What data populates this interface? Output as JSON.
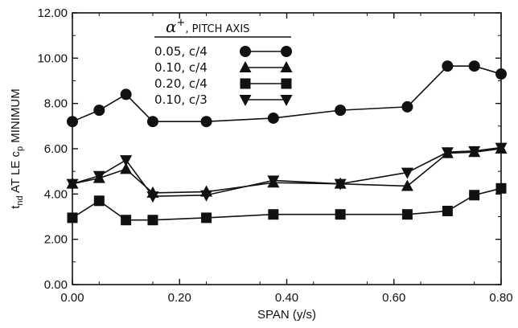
{
  "chart_data": {
    "type": "line",
    "xlabel": "SPAN (y/s)",
    "ylabel": {
      "t": "t",
      "t_sub": "nd",
      "mid": " AT LE c",
      "c_sub": "p",
      "end": " MINIMUM"
    },
    "xlim": [
      0,
      0.8
    ],
    "ylim": [
      0,
      12
    ],
    "x_ticks": [
      0.0,
      0.2,
      0.4,
      0.6,
      0.8
    ],
    "x_tick_labels": [
      "0.00",
      "0.20",
      "0.40",
      "0.60",
      "0.80"
    ],
    "y_ticks": [
      0,
      2,
      4,
      6,
      8,
      10,
      12
    ],
    "y_tick_labels": [
      "0.00",
      "2.00",
      "4.00",
      "6.00",
      "8.00",
      "10.00",
      "12.00"
    ],
    "grid": false,
    "legend": {
      "placement": "top-center",
      "title_symbol": "α",
      "title_sup": "+",
      "title_text": "PITCH AXIS"
    },
    "series": [
      {
        "name": "0.05, c/4",
        "marker": "circle",
        "x": [
          0.0,
          0.05,
          0.1,
          0.15,
          0.25,
          0.375,
          0.5,
          0.625,
          0.7,
          0.75,
          0.8
        ],
        "y": [
          7.2,
          7.7,
          8.4,
          7.2,
          7.2,
          7.35,
          7.7,
          7.85,
          9.65,
          9.65,
          9.3
        ]
      },
      {
        "name": "0.10, c/4",
        "marker": "triangle-up",
        "x": [
          0.0,
          0.05,
          0.1,
          0.15,
          0.25,
          0.375,
          0.5,
          0.625,
          0.7,
          0.75,
          0.8
        ],
        "y": [
          4.45,
          4.7,
          5.1,
          4.05,
          4.1,
          4.5,
          4.45,
          4.35,
          5.8,
          5.85,
          6.0
        ]
      },
      {
        "name": "0.20, c/4",
        "marker": "square",
        "x": [
          0.0,
          0.05,
          0.1,
          0.15,
          0.25,
          0.375,
          0.5,
          0.625,
          0.7,
          0.75,
          0.8
        ],
        "y": [
          2.95,
          3.7,
          2.85,
          2.85,
          2.95,
          3.1,
          3.1,
          3.1,
          3.25,
          3.95,
          4.25
        ]
      },
      {
        "name": "0.10, c/3",
        "marker": "triangle-down",
        "x": [
          0.0,
          0.05,
          0.1,
          0.15,
          0.25,
          0.375,
          0.5,
          0.625,
          0.7,
          0.75,
          0.8
        ],
        "y": [
          4.45,
          4.8,
          5.5,
          3.9,
          3.95,
          4.6,
          4.45,
          4.95,
          5.85,
          5.9,
          6.05
        ]
      }
    ]
  }
}
